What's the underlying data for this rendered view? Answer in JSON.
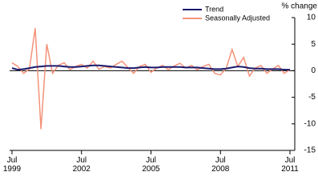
{
  "chart_data": {
    "type": "line",
    "y_label": "% change",
    "categories": [
      "Jul 1999",
      "Oct 1999",
      "Jan 2000",
      "Apr 2000",
      "Jul 2000",
      "Oct 2000",
      "Jan 2001",
      "Apr 2001",
      "Jul 2001",
      "Oct 2001",
      "Jan 2002",
      "Apr 2002",
      "Jul 2002",
      "Oct 2002",
      "Jan 2003",
      "Apr 2003",
      "Jul 2003",
      "Oct 2003",
      "Jan 2004",
      "Apr 2004",
      "Jul 2004",
      "Oct 2004",
      "Jan 2005",
      "Apr 2005",
      "Jul 2005",
      "Oct 2005",
      "Jan 2006",
      "Apr 2006",
      "Jul 2006",
      "Oct 2006",
      "Jan 2007",
      "Apr 2007",
      "Jul 2007",
      "Oct 2007",
      "Jan 2008",
      "Apr 2008",
      "Jul 2008",
      "Oct 2008",
      "Jan 2009",
      "Apr 2009",
      "Jul 2009",
      "Oct 2009",
      "Jan 2010",
      "Apr 2010",
      "Jul 2010",
      "Oct 2010",
      "Jan 2011",
      "Apr 2011",
      "Jul 2011"
    ],
    "series": [
      {
        "name": "Trend",
        "color": "#1a1a6e",
        "values": [
          0.5,
          0.2,
          0.3,
          0.5,
          0.7,
          0.8,
          0.9,
          0.9,
          0.9,
          0.8,
          0.7,
          0.7,
          0.8,
          0.9,
          1.0,
          1.0,
          0.9,
          0.8,
          0.7,
          0.6,
          0.5,
          0.5,
          0.6,
          0.7,
          0.6,
          0.6,
          0.7,
          0.7,
          0.7,
          0.7,
          0.6,
          0.6,
          0.6,
          0.5,
          0.4,
          0.3,
          0.3,
          0.4,
          0.6,
          0.8,
          0.7,
          0.5,
          0.4,
          0.4,
          0.3,
          0.3,
          0.3,
          0.2,
          0.2
        ]
      },
      {
        "name": "Seasonally Adjusted",
        "color": "#f4937a",
        "values": [
          1.5,
          0.8,
          -0.5,
          0.3,
          8.0,
          -11.0,
          5.0,
          -0.5,
          1.0,
          1.5,
          0.2,
          0.8,
          1.2,
          0.5,
          1.8,
          0.3,
          0.8,
          0.5,
          1.2,
          1.8,
          0.6,
          -0.5,
          0.8,
          1.2,
          -0.3,
          0.5,
          1.0,
          0.2,
          0.9,
          1.4,
          0.5,
          1.0,
          0.2,
          0.8,
          1.2,
          -0.5,
          -0.8,
          0.5,
          4.0,
          0.8,
          2.5,
          -1.0,
          0.5,
          1.0,
          -0.5,
          0.3,
          1.0,
          -0.5,
          0.2
        ]
      }
    ],
    "xticks": [
      "Jul 1999",
      "Jul 2002",
      "Jul 2005",
      "Jul 2008",
      "Jul 2011"
    ],
    "ylim": [
      -15,
      10
    ],
    "yticks": [
      10,
      5,
      0,
      -5,
      -10,
      -15
    ],
    "legend": "top-right"
  }
}
